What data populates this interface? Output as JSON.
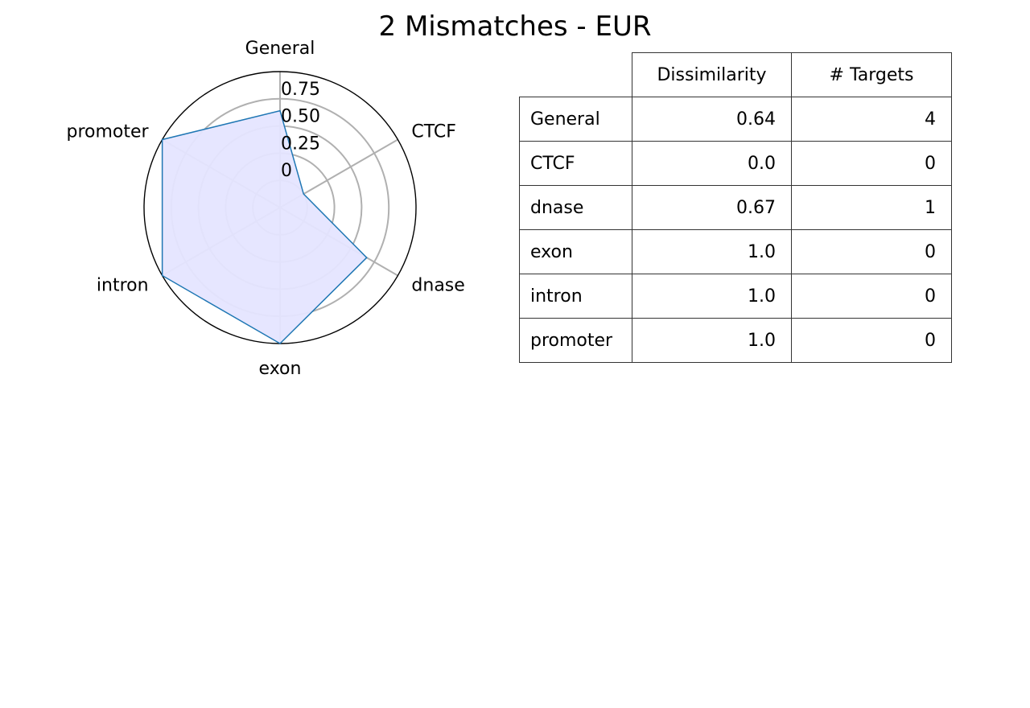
{
  "chart_data": [
    {
      "type": "radar",
      "title": "2 Mismatches - EUR",
      "categories": [
        "General",
        "CTCF",
        "dnase",
        "exon",
        "intron",
        "promoter"
      ],
      "series": [
        {
          "values": [
            0.64,
            0.0,
            0.67,
            1.0,
            1.0,
            1.0
          ]
        }
      ],
      "radial_ticks": [
        0,
        0.25,
        0.5,
        0.75
      ],
      "radial_tick_labels": [
        "0",
        "0.25",
        "0.50",
        "0.75"
      ],
      "rlim": [
        -0.25,
        1.0
      ],
      "grid": true,
      "colors": {
        "line": "#1f77b4",
        "fill": "#e5e5ff",
        "grid": "#b0b0b0",
        "frame": "#000000"
      }
    },
    {
      "type": "table",
      "columns": [
        "",
        "Dissimilarity",
        "# Targets"
      ],
      "rows": [
        {
          "label": "General",
          "dissimilarity": "0.64",
          "targets": "4"
        },
        {
          "label": "CTCF",
          "dissimilarity": "0.0",
          "targets": "0"
        },
        {
          "label": "dnase",
          "dissimilarity": "0.67",
          "targets": "1"
        },
        {
          "label": "exon",
          "dissimilarity": "1.0",
          "targets": "0"
        },
        {
          "label": "intron",
          "dissimilarity": "1.0",
          "targets": "0"
        },
        {
          "label": "promoter",
          "dissimilarity": "1.0",
          "targets": "0"
        }
      ]
    }
  ]
}
